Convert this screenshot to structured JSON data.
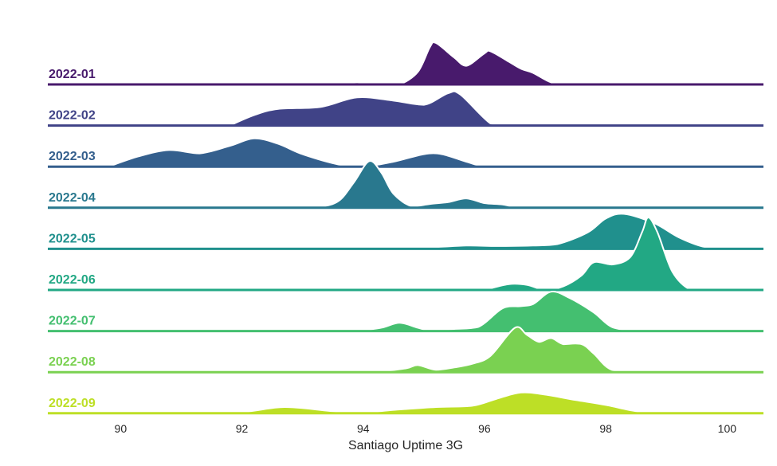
{
  "chart_data": {
    "type": "area",
    "subtype": "ridgeline-density",
    "xlabel": "Santiago Uptime 3G",
    "xlim": [
      88.8,
      100.6
    ],
    "xticks": [
      90,
      92,
      94,
      96,
      98,
      100
    ],
    "grid": false,
    "series": [
      {
        "name": "2022-01",
        "color": "#481a6c",
        "support": [
          93.5,
          97.4
        ],
        "peak_height": 0.4,
        "density": [
          [
            93.5,
            0.0
          ],
          [
            93.9,
            0.05
          ],
          [
            94.15,
            0.0
          ],
          [
            94.4,
            0.04
          ],
          [
            94.6,
            0.0
          ],
          [
            94.9,
            0.3
          ],
          [
            95.1,
            0.9
          ],
          [
            95.2,
            1.0
          ],
          [
            95.5,
            0.65
          ],
          [
            95.7,
            0.45
          ],
          [
            96.0,
            0.75
          ],
          [
            96.1,
            0.8
          ],
          [
            96.4,
            0.55
          ],
          [
            96.6,
            0.38
          ],
          [
            96.8,
            0.28
          ],
          [
            97.1,
            0.05
          ],
          [
            97.4,
            0.0
          ]
        ]
      },
      {
        "name": "2022-02",
        "color": "#404387",
        "support": [
          91.8,
          96.4
        ],
        "peak_height": 0.4,
        "density": [
          [
            91.8,
            0.0
          ],
          [
            92.2,
            0.25
          ],
          [
            92.6,
            0.4
          ],
          [
            93.3,
            0.45
          ],
          [
            93.9,
            0.68
          ],
          [
            94.5,
            0.6
          ],
          [
            95.0,
            0.5
          ],
          [
            95.4,
            0.78
          ],
          [
            95.6,
            0.75
          ],
          [
            96.1,
            0.05
          ],
          [
            96.4,
            0.0
          ]
        ]
      },
      {
        "name": "2022-03",
        "color": "#345f8d",
        "support": [
          89.8,
          96.3
        ],
        "peak_height": 0.4,
        "density": [
          [
            89.8,
            0.0
          ],
          [
            90.3,
            0.25
          ],
          [
            90.8,
            0.4
          ],
          [
            91.3,
            0.32
          ],
          [
            91.8,
            0.5
          ],
          [
            92.2,
            0.68
          ],
          [
            92.6,
            0.55
          ],
          [
            93.0,
            0.3
          ],
          [
            93.6,
            0.05
          ],
          [
            94.0,
            0.0
          ],
          [
            94.5,
            0.12
          ],
          [
            95.0,
            0.3
          ],
          [
            95.3,
            0.3
          ],
          [
            95.7,
            0.12
          ],
          [
            96.0,
            0.0
          ],
          [
            96.3,
            0.0
          ]
        ]
      },
      {
        "name": "2022-04",
        "color": "#29788e",
        "support": [
          92.8,
          97.2
        ],
        "peak_height": 0.45,
        "density": [
          [
            92.8,
            0.0
          ],
          [
            93.1,
            0.03
          ],
          [
            93.3,
            0.02
          ],
          [
            93.6,
            0.15
          ],
          [
            93.85,
            0.55
          ],
          [
            94.1,
            1.0
          ],
          [
            94.3,
            0.75
          ],
          [
            94.5,
            0.3
          ],
          [
            94.8,
            0.03
          ],
          [
            95.1,
            0.08
          ],
          [
            95.4,
            0.12
          ],
          [
            95.7,
            0.2
          ],
          [
            96.0,
            0.1
          ],
          [
            96.3,
            0.07
          ],
          [
            96.6,
            0.0
          ],
          [
            97.2,
            0.0
          ]
        ]
      },
      {
        "name": "2022-05",
        "color": "#20908d",
        "support": [
          93.0,
          100.0
        ],
        "peak_height": 0.45,
        "density": [
          [
            93.0,
            0.0
          ],
          [
            93.8,
            0.03
          ],
          [
            94.3,
            0.04
          ],
          [
            95.0,
            0.03
          ],
          [
            95.7,
            0.07
          ],
          [
            96.2,
            0.06
          ],
          [
            96.8,
            0.07
          ],
          [
            97.2,
            0.1
          ],
          [
            97.7,
            0.35
          ],
          [
            98.0,
            0.65
          ],
          [
            98.3,
            0.75
          ],
          [
            98.8,
            0.55
          ],
          [
            99.2,
            0.25
          ],
          [
            99.6,
            0.05
          ],
          [
            100.0,
            0.0
          ]
        ]
      },
      {
        "name": "2022-06",
        "color": "#22a884",
        "support": [
          96.0,
          99.7
        ],
        "peak_height": 0.7,
        "density": [
          [
            96.0,
            0.0
          ],
          [
            96.4,
            0.08
          ],
          [
            96.7,
            0.07
          ],
          [
            97.0,
            0.0
          ],
          [
            97.3,
            0.05
          ],
          [
            97.6,
            0.2
          ],
          [
            97.8,
            0.38
          ],
          [
            98.1,
            0.35
          ],
          [
            98.4,
            0.45
          ],
          [
            98.6,
            0.8
          ],
          [
            98.7,
            1.0
          ],
          [
            98.85,
            0.8
          ],
          [
            99.1,
            0.25
          ],
          [
            99.4,
            0.0
          ],
          [
            99.7,
            0.0
          ]
        ]
      },
      {
        "name": "2022-07",
        "color": "#44bf70",
        "support": [
          93.9,
          98.5
        ],
        "peak_height": 0.4,
        "density": [
          [
            93.9,
            0.0
          ],
          [
            94.3,
            0.08
          ],
          [
            94.6,
            0.2
          ],
          [
            94.9,
            0.08
          ],
          [
            95.1,
            0.02
          ],
          [
            95.5,
            0.05
          ],
          [
            95.9,
            0.1
          ],
          [
            96.3,
            0.55
          ],
          [
            96.6,
            0.6
          ],
          [
            96.8,
            0.65
          ],
          [
            97.1,
            0.95
          ],
          [
            97.4,
            0.8
          ],
          [
            97.8,
            0.45
          ],
          [
            98.1,
            0.1
          ],
          [
            98.5,
            0.0
          ]
        ]
      },
      {
        "name": "2022-08",
        "color": "#7ad151",
        "support": [
          94.2,
          98.6
        ],
        "peak_height": 0.45,
        "density": [
          [
            94.2,
            0.0
          ],
          [
            94.7,
            0.08
          ],
          [
            94.9,
            0.15
          ],
          [
            95.2,
            0.05
          ],
          [
            95.5,
            0.1
          ],
          [
            95.8,
            0.18
          ],
          [
            96.1,
            0.35
          ],
          [
            96.5,
            0.95
          ],
          [
            96.7,
            0.8
          ],
          [
            96.9,
            0.65
          ],
          [
            97.1,
            0.73
          ],
          [
            97.3,
            0.6
          ],
          [
            97.6,
            0.6
          ],
          [
            97.8,
            0.4
          ],
          [
            98.1,
            0.05
          ],
          [
            98.6,
            0.0
          ]
        ]
      },
      {
        "name": "2022-09",
        "color": "#bddf26",
        "support": [
          91.0,
          99.0
        ],
        "peak_height": 0.4,
        "density": [
          [
            91.0,
            0.0
          ],
          [
            92.0,
            0.03
          ],
          [
            92.7,
            0.15
          ],
          [
            93.5,
            0.05
          ],
          [
            94.0,
            0.02
          ],
          [
            94.5,
            0.08
          ],
          [
            95.2,
            0.15
          ],
          [
            95.8,
            0.18
          ],
          [
            96.2,
            0.35
          ],
          [
            96.6,
            0.5
          ],
          [
            97.0,
            0.45
          ],
          [
            97.5,
            0.32
          ],
          [
            98.0,
            0.2
          ],
          [
            98.5,
            0.05
          ],
          [
            99.0,
            0.0
          ]
        ]
      }
    ]
  }
}
